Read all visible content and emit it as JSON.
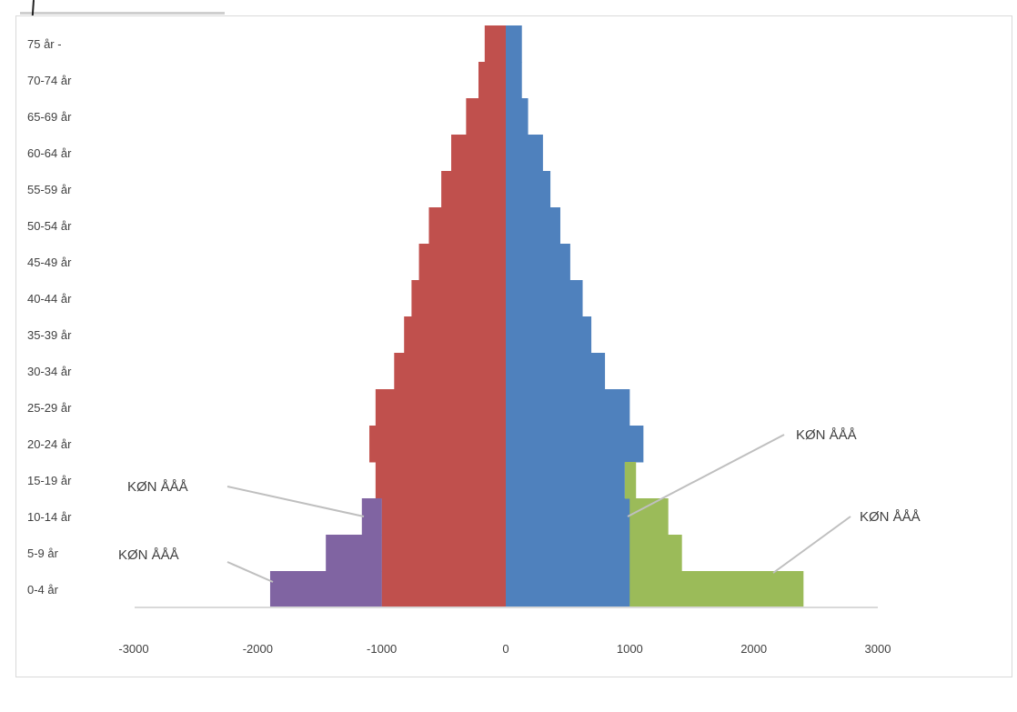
{
  "colors": {
    "left_base": "#c0504d",
    "right_base": "#4f81bd",
    "left_highlight": "#8064a2",
    "right_highlight": "#9bbb59",
    "axis": "#d9d9d9",
    "leader": "#bfbfbf"
  },
  "chart_data": {
    "type": "bar",
    "orientation": "horizontal",
    "layout": "population-pyramid",
    "title": "",
    "xlabel": "",
    "ylabel": "",
    "xlim": [
      -3000,
      3000
    ],
    "x_ticks": [
      -3000,
      -2000,
      -1000,
      0,
      1000,
      2000,
      3000
    ],
    "x_tick_labels": [
      "-3000",
      "-2000",
      "-1000",
      "0",
      "1000",
      "2000",
      "3000"
    ],
    "categories": [
      "0-4 år",
      "5-9 år",
      "10-14 år",
      "15-19 år",
      "20-24 år",
      "25-29 år",
      "30-34 år",
      "35-39 år",
      "40-44 år",
      "45-49 år",
      "50-54 år",
      "55-59 år",
      "60-64 år",
      "65-69 år",
      "70-74 år",
      "75 år -"
    ],
    "series": [
      {
        "side": "left",
        "values": [
          -1000,
          -1000,
          -1000,
          -1050,
          -1100,
          -1050,
          -900,
          -820,
          -760,
          -700,
          -620,
          -520,
          -440,
          -320,
          -220,
          -170
        ]
      },
      {
        "side": "right",
        "values": [
          1000,
          1000,
          1000,
          960,
          1110,
          1000,
          800,
          690,
          620,
          520,
          440,
          360,
          300,
          180,
          130,
          130
        ]
      },
      {
        "side": "left",
        "values": [
          -1900,
          -1450,
          -1160,
          0,
          0,
          0,
          0,
          0,
          0,
          0,
          0,
          0,
          0,
          0,
          0,
          0
        ]
      },
      {
        "side": "right",
        "values": [
          2400,
          1420,
          1310,
          1050,
          0,
          0,
          0,
          0,
          0,
          0,
          0,
          0,
          0,
          0,
          0,
          0
        ]
      }
    ],
    "annotations": [
      {
        "text": "KØN ÅÅÅ",
        "target_category": "5-9 år",
        "target_side": "left"
      },
      {
        "text": "KØN ÅÅÅ",
        "target_category": "15-19 år",
        "target_side": "left"
      },
      {
        "text": "KØN ÅÅÅ",
        "target_category": "15-19 år",
        "target_side": "right"
      },
      {
        "text": "KØN ÅÅÅ",
        "target_category": "5-9 år",
        "target_side": "right"
      }
    ],
    "grid": false,
    "legend": "none"
  }
}
